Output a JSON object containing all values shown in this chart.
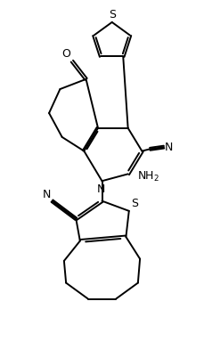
{
  "bg_color": "#ffffff",
  "line_color": "#000000",
  "line_width": 1.4,
  "fig_width": 2.29,
  "fig_height": 3.84,
  "xlim": [
    0,
    10
  ],
  "ylim": [
    0,
    17
  ]
}
